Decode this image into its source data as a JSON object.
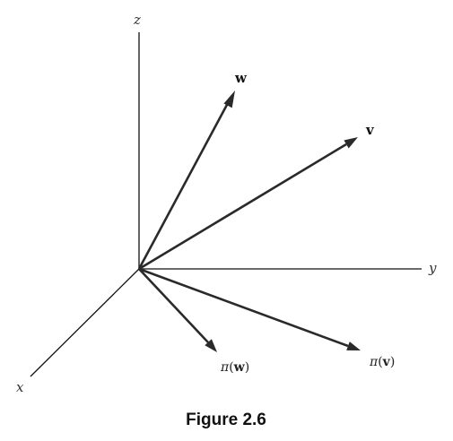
{
  "axes": {
    "z": "z",
    "y": "y",
    "x": "x"
  },
  "vectors": {
    "w": "w",
    "v": "v"
  },
  "projections": {
    "pi_w": {
      "symbol": "π",
      "open": "(",
      "arg": "w",
      "close": ")"
    },
    "pi_v": {
      "symbol": "π",
      "open": "(",
      "arg": "v",
      "close": ")"
    }
  },
  "caption": "Figure 2.6"
}
